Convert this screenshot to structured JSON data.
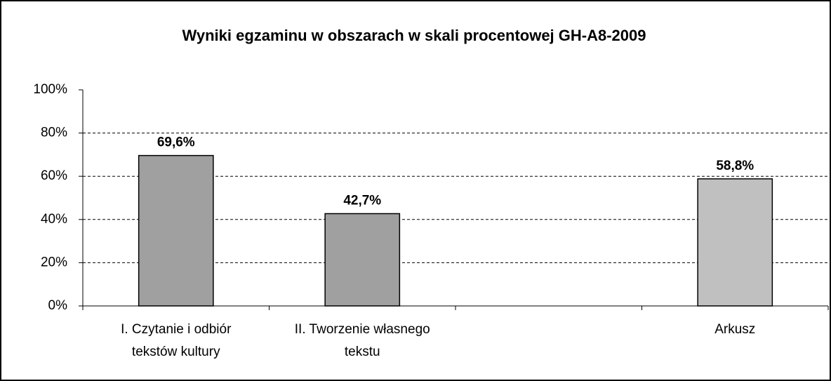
{
  "chart_data": {
    "type": "bar",
    "title": "Wyniki egzaminu w obszarach w skali procentowej GH-A8-2009",
    "categories": [
      "I. Czytanie i odbiór tekstów kultury",
      "II. Tworzenie własnego tekstu",
      null,
      "Arkusz"
    ],
    "values": [
      69.6,
      42.7,
      null,
      58.8
    ],
    "value_labels": [
      "69,6%",
      "42,7%",
      null,
      "58,8%"
    ],
    "colors": [
      "#a0a0a0",
      "#a0a0a0",
      null,
      "#c0c0c0"
    ],
    "ylim": [
      0,
      100
    ],
    "yticks": [
      {
        "value": 0,
        "label": "0%"
      },
      {
        "value": 20,
        "label": "20%"
      },
      {
        "value": 40,
        "label": "40%"
      },
      {
        "value": 60,
        "label": "60%"
      },
      {
        "value": 80,
        "label": "80%"
      },
      {
        "value": 100,
        "label": "100%"
      }
    ],
    "grid": true
  }
}
